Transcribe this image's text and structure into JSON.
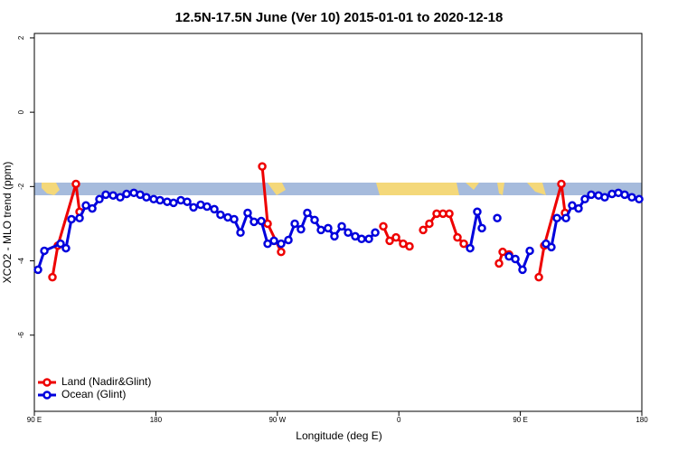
{
  "chart_data": {
    "type": "line",
    "title": "12.5N-17.5N June (Ver 10)   2015-01-01 to 2020-12-18",
    "x_label": "Longitude (deg E)",
    "y_label": "XCO2 - MLO trend (ppm)",
    "xlim": [
      90,
      540
    ],
    "xticks": [
      {
        "value": 90,
        "label": "90 E"
      },
      180,
      {
        "value": 270,
        "label": "90 W"
      },
      {
        "value": 360,
        "label": "0"
      },
      {
        "value": 450,
        "label": "90 E"
      },
      {
        "value": 540,
        "label": "180"
      }
    ],
    "ylim": [
      -8.05,
      2.12
    ],
    "yticks": [
      -6,
      -4,
      -2,
      0,
      2
    ],
    "legend": "bottom-left",
    "series": [
      {
        "name": "Land (Nadir&Glint)",
        "color": "#ee0000",
        "x": [
          103.4,
          107.4,
          120.8,
          123.5,
          null,
          258.8,
          262.8,
          272.8,
          null,
          348.5,
          353.2,
          357.9,
          363.2,
          367.9,
          null,
          378.0,
          382.6,
          388.0,
          392.7,
          397.4,
          403.4,
          408.1,
          null,
          434.2,
          436.9,
          441.6,
          null,
          463.7,
          467.7,
          480.4,
          483.1
        ],
        "values": [
          -4.44,
          -3.59,
          -1.93,
          -2.68,
          null,
          -1.46,
          -3.0,
          -3.76,
          null,
          -3.07,
          -3.46,
          -3.37,
          -3.54,
          -3.61,
          null,
          -3.17,
          -3.0,
          -2.73,
          -2.73,
          -2.73,
          -3.37,
          -3.54,
          null,
          -4.07,
          -3.76,
          -3.83,
          null,
          -4.44,
          -3.59,
          -1.93,
          -2.71
        ]
      },
      {
        "name": "Ocean (Glint)",
        "color": "#0000dd",
        "x": [
          92.7,
          97.4,
          109.4,
          113.4,
          117.5,
          123.5,
          128.2,
          132.9,
          138.2,
          142.9,
          148.3,
          153.6,
          158.3,
          163.7,
          168.4,
          173.0,
          178.4,
          183.1,
          188.4,
          193.1,
          198.5,
          203.2,
          207.9,
          213.2,
          217.9,
          223.3,
          227.9,
          233.3,
          238.0,
          242.7,
          248.0,
          252.7,
          258.1,
          262.8,
          267.5,
          272.8,
          278.2,
          282.9,
          287.5,
          292.2,
          297.6,
          302.3,
          307.6,
          312.3,
          317.7,
          322.4,
          327.7,
          332.4,
          337.8,
          342.5,
          null,
          412.8,
          418.1,
          421.5,
          null,
          432.9,
          null,
          441.6,
          446.3,
          451.6,
          457.0,
          null,
          469.0,
          473.0,
          477.1,
          483.8,
          488.4,
          493.1,
          497.8,
          502.5,
          507.9,
          512.5,
          517.9,
          522.6,
          527.3,
          532.6,
          538.0
        ],
        "values": [
          -4.24,
          -3.73,
          -3.54,
          -3.66,
          -2.88,
          -2.85,
          -2.51,
          -2.59,
          -2.34,
          -2.22,
          -2.24,
          -2.29,
          -2.2,
          -2.17,
          -2.22,
          -2.29,
          -2.34,
          -2.37,
          -2.41,
          -2.44,
          -2.37,
          -2.41,
          -2.56,
          -2.49,
          -2.54,
          -2.61,
          -2.76,
          -2.83,
          -2.88,
          -3.24,
          -2.71,
          -2.95,
          -2.93,
          -3.54,
          -3.46,
          -3.54,
          -3.44,
          -3.0,
          -3.15,
          -2.71,
          -2.9,
          -3.17,
          -3.12,
          -3.34,
          -3.07,
          -3.24,
          -3.34,
          -3.41,
          -3.41,
          -3.24,
          null,
          -3.66,
          -2.68,
          -3.12,
          null,
          -2.85,
          null,
          -3.88,
          -3.95,
          -4.24,
          -3.73,
          null,
          -3.54,
          -3.63,
          -2.85,
          -2.85,
          -2.51,
          -2.59,
          -2.34,
          -2.22,
          -2.24,
          -2.29,
          -2.2,
          -2.17,
          -2.22,
          -2.29,
          -2.34
        ]
      }
    ]
  }
}
